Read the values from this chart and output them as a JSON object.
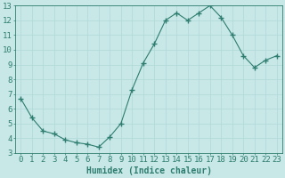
{
  "x": [
    0,
    1,
    2,
    3,
    4,
    5,
    6,
    7,
    8,
    9,
    10,
    11,
    12,
    13,
    14,
    15,
    16,
    17,
    18,
    19,
    20,
    21,
    22,
    23
  ],
  "y": [
    6.7,
    5.4,
    4.5,
    4.3,
    3.9,
    3.7,
    3.6,
    3.4,
    4.1,
    5.0,
    7.3,
    9.1,
    10.4,
    12.0,
    12.5,
    12.0,
    12.5,
    13.0,
    12.2,
    11.0,
    9.6,
    8.8,
    9.3,
    9.6
  ],
  "line_color": "#2e7d6e",
  "marker": "+",
  "marker_size": 4,
  "bg_color": "#c8e8e8",
  "grid_color": "#b0d8d8",
  "xlabel": "Humidex (Indice chaleur)",
  "xlim": [
    -0.5,
    23.5
  ],
  "ylim": [
    3,
    13
  ],
  "yticks": [
    3,
    4,
    5,
    6,
    7,
    8,
    9,
    10,
    11,
    12,
    13
  ],
  "xticks": [
    0,
    1,
    2,
    3,
    4,
    5,
    6,
    7,
    8,
    9,
    10,
    11,
    12,
    13,
    14,
    15,
    16,
    17,
    18,
    19,
    20,
    21,
    22,
    23
  ],
  "tick_color": "#2e7d6e",
  "label_color": "#2e7d6e",
  "axis_color": "#2e7d6e",
  "xlabel_fontsize": 7,
  "tick_fontsize": 6.5
}
